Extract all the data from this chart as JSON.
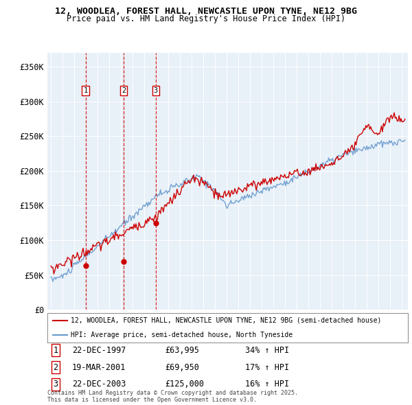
{
  "title_line1": "12, WOODLEA, FOREST HALL, NEWCASTLE UPON TYNE, NE12 9BG",
  "title_line2": "Price paid vs. HM Land Registry's House Price Index (HPI)",
  "ylim": [
    0,
    370000
  ],
  "yticks": [
    0,
    50000,
    100000,
    150000,
    200000,
    250000,
    300000,
    350000
  ],
  "ytick_labels": [
    "£0",
    "£50K",
    "£100K",
    "£150K",
    "£200K",
    "£250K",
    "£300K",
    "£350K"
  ],
  "property_color": "#cc0000",
  "hpi_color": "#6699cc",
  "chart_bg": "#e8f0f8",
  "grid_color": "#ffffff",
  "background_color": "#ffffff",
  "legend_property": "12, WOODLEA, FOREST HALL, NEWCASTLE UPON TYNE, NE12 9BG (semi-detached house)",
  "legend_hpi": "HPI: Average price, semi-detached house, North Tyneside",
  "sale_year_nums": [
    1997.958,
    2001.208,
    2003.958
  ],
  "sale_prices": [
    63995,
    69950,
    125000
  ],
  "sale_labels": [
    "1",
    "2",
    "3"
  ],
  "footnote1": "Contains HM Land Registry data © Crown copyright and database right 2025.",
  "footnote2": "This data is licensed under the Open Government Licence v3.0.",
  "dashed_color": "#cc0000",
  "table_data": [
    [
      "1",
      "22-DEC-1997",
      "£63,995",
      "34% ↑ HPI"
    ],
    [
      "2",
      "19-MAR-2001",
      "£69,950",
      "17% ↑ HPI"
    ],
    [
      "3",
      "22-DEC-2003",
      "£125,000",
      "16% ↑ HPI"
    ]
  ]
}
